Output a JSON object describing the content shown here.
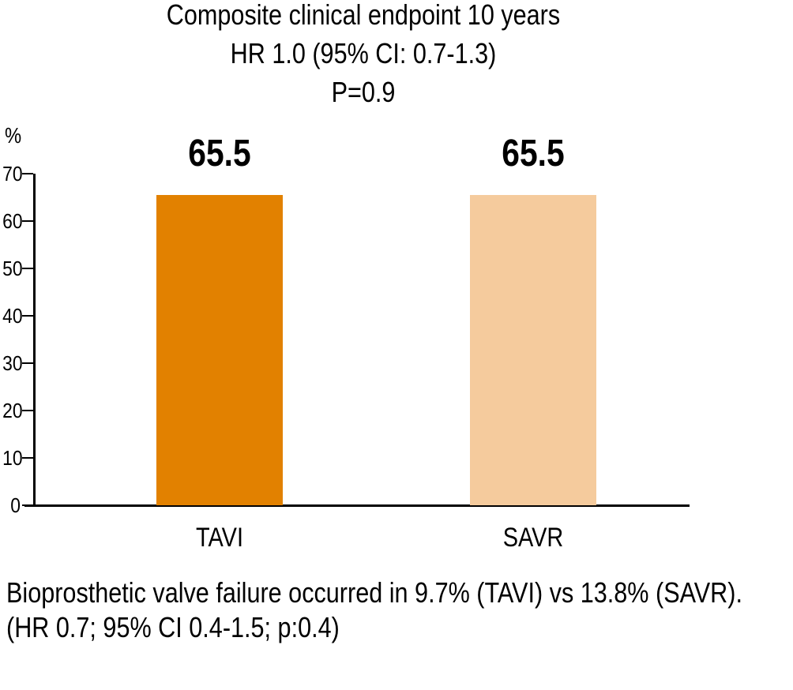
{
  "chart_data": {
    "type": "bar",
    "title": "Composite clinical endpoint 10 years",
    "subtitle": "HR 1.0 (95% CI: 0.7-1.3)",
    "p_value_line": "P=0.9",
    "categories": [
      "TAVI",
      "SAVR"
    ],
    "values": [
      65.5,
      65.5
    ],
    "value_labels": [
      "65.5",
      "65.5"
    ],
    "bar_colors": [
      "#E28100",
      "#F5CB9D"
    ],
    "ylabel": "%",
    "ylim": [
      0,
      70
    ],
    "yticks": [
      0,
      10,
      20,
      30,
      40,
      50,
      60,
      70
    ],
    "grid": false,
    "legend_position": "none",
    "axis_color": "#000000"
  },
  "footnote": {
    "line1": "Bioprosthetic valve failure occurred in 9.7% (TAVI) vs 13.8% (SAVR).",
    "line2": "(HR 0.7; 95% CI 0.4-1.5; p:0.4)"
  }
}
